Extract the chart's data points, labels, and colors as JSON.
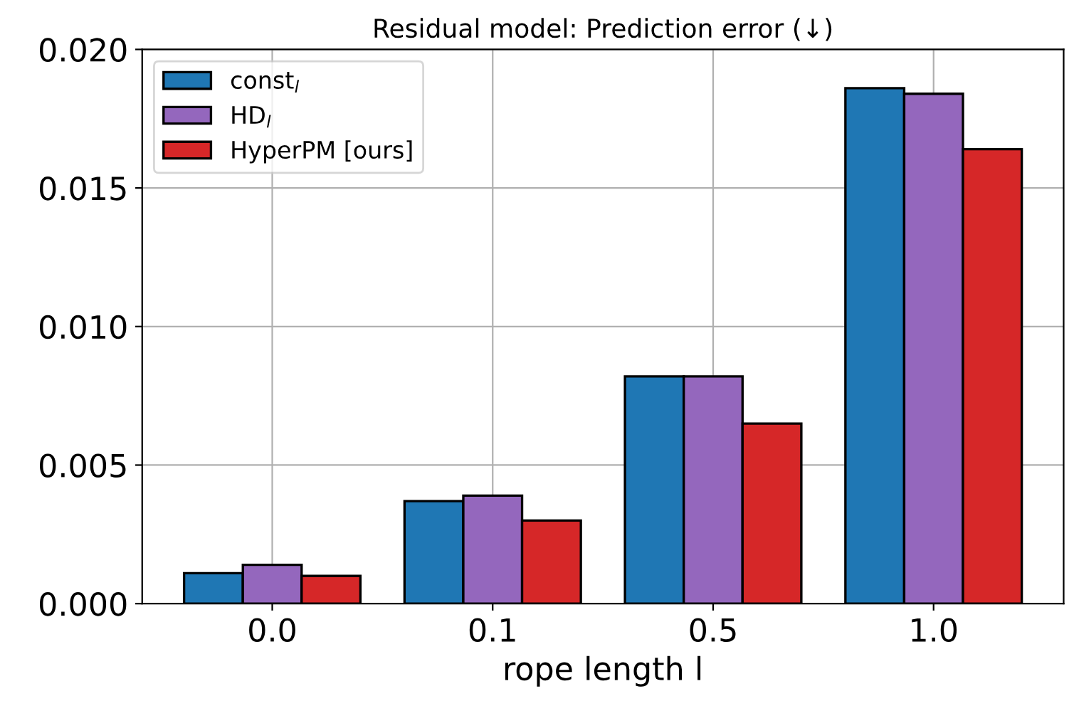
{
  "chart_data": {
    "type": "bar",
    "title": "Residual model: Prediction error (↓)",
    "xlabel": "rope length l",
    "categories": [
      "0.0",
      "0.1",
      "0.5",
      "1.0"
    ],
    "series": [
      {
        "name": "const$_{l}$",
        "color": "#1f77b4",
        "values": [
          0.0011,
          0.0037,
          0.0082,
          0.0186
        ]
      },
      {
        "name": "HD$_{l}$",
        "color": "#9467bd",
        "values": [
          0.0014,
          0.0039,
          0.0082,
          0.0184
        ]
      },
      {
        "name": "HyperPM [ours]",
        "color": "#d62728",
        "values": [
          0.001,
          0.003,
          0.0065,
          0.0164
        ]
      }
    ],
    "ylim": [
      0,
      0.02
    ],
    "yticks": [
      {
        "value": 0,
        "label": "0.000"
      },
      {
        "value": 0.005,
        "label": "0.005"
      },
      {
        "value": 0.01,
        "label": "0.010"
      },
      {
        "value": 0.015,
        "label": "0.015"
      },
      {
        "value": 0.02,
        "label": "0.020"
      }
    ],
    "grid": true,
    "legend": "top left"
  }
}
